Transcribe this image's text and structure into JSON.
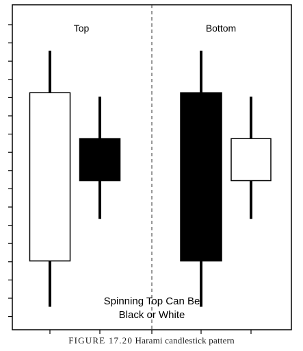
{
  "figure": {
    "label": "FIGURE 17.20",
    "title": "Harami candlestick pattern"
  },
  "chart_data": {
    "type": "candlestick",
    "title": "",
    "grid": false,
    "panels": [
      {
        "label": "Top",
        "candles": [
          {
            "color": "white",
            "high": 100,
            "open": 89,
            "close": 45,
            "low": 33
          },
          {
            "color": "black",
            "high": 88,
            "open": 77,
            "close": 66,
            "low": 56
          }
        ]
      },
      {
        "label": "Bottom",
        "candles": [
          {
            "color": "black",
            "high": 100,
            "open": 89,
            "close": 45,
            "low": 33
          },
          {
            "color": "white",
            "high": 88,
            "open": 77,
            "close": 66,
            "low": 56
          }
        ]
      }
    ],
    "annotation": [
      "Spinning Top Can Be",
      "Black or White"
    ],
    "ylim": [
      27,
      112
    ],
    "colors": {
      "black": "#000000",
      "white": "#ffffff",
      "outline": "#000000"
    }
  }
}
